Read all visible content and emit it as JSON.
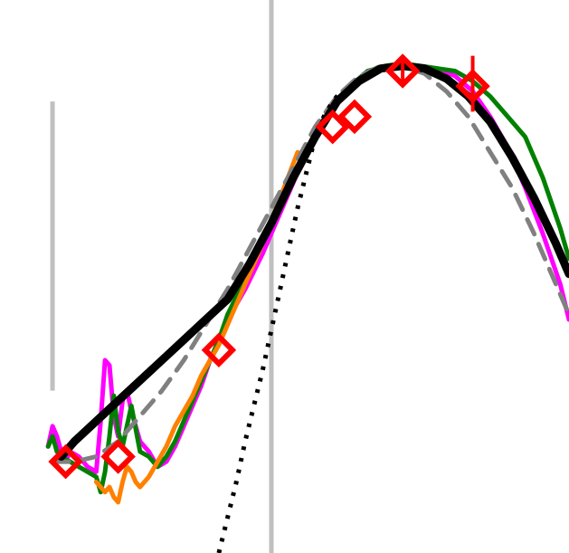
{
  "chart_data": {
    "type": "line",
    "title": "",
    "xlabel": "",
    "ylabel": "",
    "grid": false,
    "legend": "none",
    "xlim": [
      -1.2,
      11.8
    ],
    "ylim": [
      0,
      1.09
    ],
    "vlines": [
      {
        "x": 0.0,
        "y0": 0.32,
        "y1": 0.89,
        "color": "#c0c0c0"
      },
      {
        "x": 5.0,
        "y0": 0.0,
        "y1": 1.09,
        "color": "#c0c0c0"
      }
    ],
    "series": [
      {
        "color": "#ff00ff",
        "style": "solid",
        "x": [
          -0.1,
          0.0,
          0.1,
          0.2,
          0.3,
          0.4,
          0.6,
          0.8,
          1.0,
          1.1,
          1.2,
          1.3,
          1.4,
          1.5,
          1.6,
          1.7,
          1.8,
          1.9,
          2.0,
          2.2,
          2.4,
          2.6,
          2.8,
          3.0,
          3.2,
          3.4,
          3.6,
          3.8,
          4.0,
          4.4,
          4.8,
          5.2,
          5.6,
          6.0,
          6.4,
          6.8,
          7.2,
          7.6,
          8.0,
          8.4,
          8.8,
          9.2,
          9.6,
          10.0,
          10.4,
          10.8,
          11.2,
          11.6,
          11.8
        ],
        "y": [
          0.21,
          0.25,
          0.23,
          0.2,
          0.18,
          0.2,
          0.19,
          0.17,
          0.16,
          0.26,
          0.38,
          0.37,
          0.27,
          0.23,
          0.3,
          0.32,
          0.28,
          0.25,
          0.22,
          0.2,
          0.17,
          0.18,
          0.21,
          0.25,
          0.29,
          0.33,
          0.38,
          0.42,
          0.46,
          0.52,
          0.59,
          0.67,
          0.75,
          0.82,
          0.88,
          0.92,
          0.95,
          0.955,
          0.96,
          0.96,
          0.955,
          0.94,
          0.91,
          0.86,
          0.8,
          0.72,
          0.63,
          0.53,
          0.46
        ]
      },
      {
        "color": "#008000",
        "style": "solid",
        "x": [
          -0.1,
          0.0,
          0.1,
          0.2,
          0.4,
          0.6,
          0.8,
          1.0,
          1.1,
          1.2,
          1.3,
          1.4,
          1.5,
          1.6,
          1.7,
          1.8,
          2.0,
          2.2,
          2.4,
          2.6,
          2.8,
          3.0,
          3.2,
          3.4,
          3.6,
          3.8,
          4.0,
          4.4,
          4.8,
          5.2,
          5.6,
          6.0,
          6.4,
          6.8,
          7.2,
          7.6,
          8.0,
          8.4,
          8.8,
          9.2,
          9.6,
          10.0,
          10.4,
          10.8,
          11.2,
          11.6,
          11.8
        ],
        "y": [
          0.21,
          0.23,
          0.2,
          0.19,
          0.18,
          0.17,
          0.16,
          0.15,
          0.12,
          0.16,
          0.23,
          0.31,
          0.24,
          0.21,
          0.25,
          0.29,
          0.2,
          0.19,
          0.17,
          0.19,
          0.22,
          0.26,
          0.3,
          0.34,
          0.38,
          0.42,
          0.47,
          0.54,
          0.62,
          0.69,
          0.75,
          0.82,
          0.88,
          0.92,
          0.95,
          0.96,
          0.965,
          0.96,
          0.955,
          0.95,
          0.93,
          0.9,
          0.86,
          0.82,
          0.74,
          0.64,
          0.58
        ]
      },
      {
        "color": "#ff8000",
        "style": "solid",
        "x": [
          1.0,
          1.1,
          1.2,
          1.3,
          1.4,
          1.5,
          1.6,
          1.7,
          1.8,
          1.9,
          2.0,
          2.2,
          2.4,
          2.6,
          2.8,
          3.0,
          3.2,
          3.4,
          3.6,
          3.8,
          4.0,
          4.4,
          4.8,
          5.2,
          5.6
        ],
        "y": [
          0.14,
          0.13,
          0.12,
          0.13,
          0.11,
          0.1,
          0.14,
          0.17,
          0.16,
          0.14,
          0.13,
          0.15,
          0.18,
          0.21,
          0.25,
          0.28,
          0.31,
          0.35,
          0.38,
          0.41,
          0.45,
          0.53,
          0.61,
          0.7,
          0.79
        ]
      },
      {
        "color": "#808080",
        "style": "dashed",
        "x": [
          0.0,
          0.5,
          1.0,
          1.5,
          2.0,
          2.5,
          3.0,
          3.5,
          4.0,
          4.5,
          5.0,
          5.5,
          6.0,
          6.5,
          7.0,
          7.5,
          8.0,
          8.5,
          9.0,
          9.5,
          10.0,
          10.5,
          11.0,
          11.5,
          11.8
        ],
        "y": [
          0.18,
          0.18,
          0.19,
          0.22,
          0.27,
          0.32,
          0.38,
          0.45,
          0.52,
          0.6,
          0.68,
          0.76,
          0.84,
          0.9,
          0.94,
          0.96,
          0.96,
          0.945,
          0.91,
          0.86,
          0.79,
          0.72,
          0.63,
          0.53,
          0.47
        ]
      },
      {
        "color": "#000000",
        "style": "dotted",
        "x": [
          3.8,
          4.0,
          4.2,
          4.4,
          4.6,
          4.8,
          5.0,
          5.2,
          5.4,
          5.6,
          5.8,
          6.0,
          6.2,
          6.4,
          6.6
        ],
        "y": [
          0.0,
          0.07,
          0.14,
          0.22,
          0.29,
          0.36,
          0.44,
          0.52,
          0.6,
          0.68,
          0.75,
          0.82,
          0.86,
          0.89,
          0.91
        ]
      },
      {
        "color": "#000000",
        "style": "thick",
        "x": [
          0.2,
          0.5,
          1.0,
          1.5,
          2.0,
          2.5,
          3.0,
          3.5,
          4.0,
          4.5,
          5.0,
          5.5,
          6.0,
          6.5,
          7.0,
          7.5,
          8.0,
          8.5,
          9.0,
          9.5,
          10.0,
          10.5,
          11.0,
          11.5,
          11.8
        ],
        "y": [
          0.19,
          0.22,
          0.26,
          0.3,
          0.34,
          0.38,
          0.42,
          0.46,
          0.5,
          0.57,
          0.65,
          0.74,
          0.82,
          0.89,
          0.93,
          0.955,
          0.96,
          0.955,
          0.935,
          0.9,
          0.85,
          0.78,
          0.7,
          0.61,
          0.55
        ]
      }
    ],
    "markers": {
      "color": "#ff0000",
      "shape": "diamond",
      "x": [
        0.3,
        1.5,
        3.8,
        6.4,
        6.9,
        8.0,
        9.6
      ],
      "y": [
        0.18,
        0.19,
        0.4,
        0.84,
        0.86,
        0.95,
        0.92
      ]
    },
    "error_bars": [
      {
        "x": 8.0,
        "y0": 0.925,
        "y1": 0.975
      },
      {
        "x": 9.6,
        "y0": 0.87,
        "y1": 0.98
      }
    ]
  }
}
